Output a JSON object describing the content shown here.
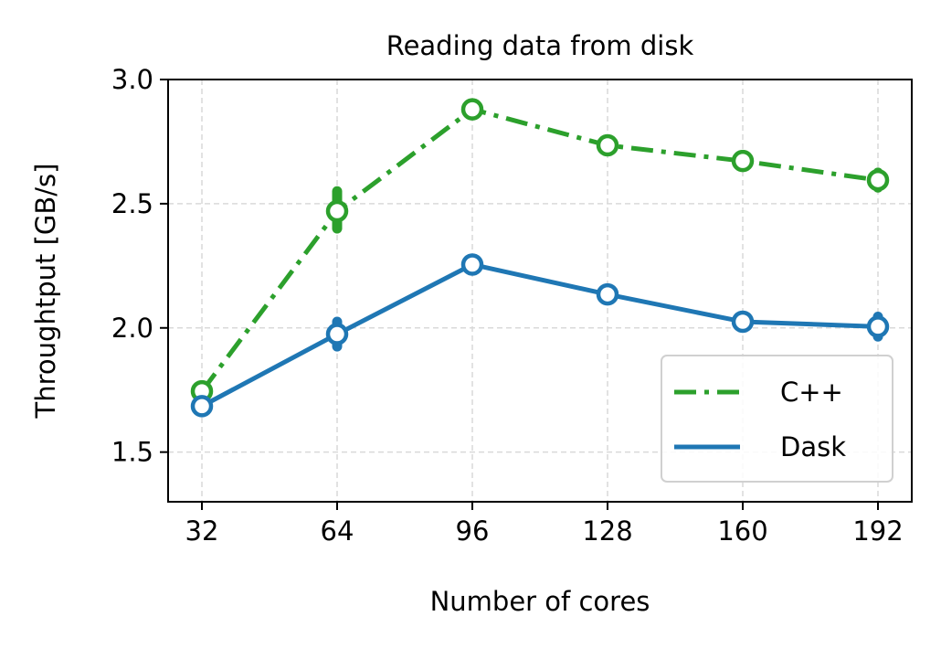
{
  "chart_data": {
    "type": "line",
    "title": "Reading data from disk",
    "xlabel": "Number of cores",
    "ylabel": "Throughtput [GB/s]",
    "x": [
      32,
      64,
      96,
      128,
      160,
      192
    ],
    "xlim": [
      24,
      200
    ],
    "ylim": [
      1.3,
      3.0
    ],
    "xticks": [
      32,
      64,
      96,
      128,
      160,
      192
    ],
    "yticks": [
      1.5,
      2.0,
      2.5,
      3.0
    ],
    "xtick_labels": [
      "32",
      "64",
      "96",
      "128",
      "160",
      "192"
    ],
    "ytick_labels": [
      "1.5",
      "2.0",
      "2.5",
      "3.0"
    ],
    "grid": true,
    "legend_position": "lower-right",
    "series": [
      {
        "name": "C++",
        "color": "#2ca02c",
        "linestyle": "dash-dot",
        "values": [
          1.745,
          2.47,
          2.88,
          2.735,
          2.672,
          2.595
        ],
        "error_range": [
          [
            1.73,
            1.76
          ],
          [
            2.4,
            2.55
          ],
          [
            2.86,
            2.9
          ],
          [
            2.72,
            2.75
          ],
          [
            2.66,
            2.685
          ],
          [
            2.565,
            2.625
          ]
        ]
      },
      {
        "name": "Dask",
        "color": "#1f77b4",
        "linestyle": "solid",
        "values": [
          1.685,
          1.975,
          2.255,
          2.135,
          2.025,
          2.005
        ],
        "error_range": [
          [
            1.675,
            1.695
          ],
          [
            1.925,
            2.025
          ],
          [
            2.235,
            2.275
          ],
          [
            2.12,
            2.15
          ],
          [
            2.015,
            2.035
          ],
          [
            1.965,
            2.045
          ]
        ]
      }
    ]
  }
}
